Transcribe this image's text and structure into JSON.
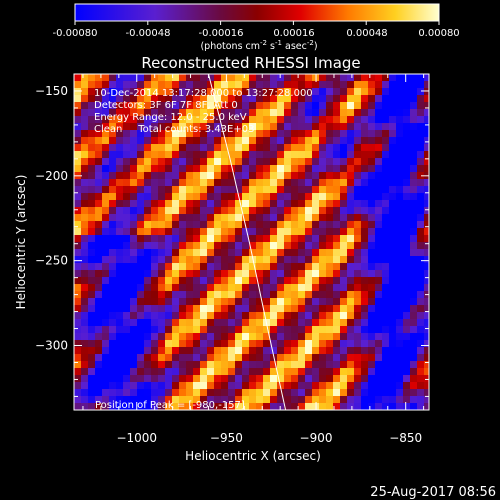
{
  "colorbar": {
    "ticks": [
      "-0.00080",
      "-0.00048",
      "-0.00016",
      "0.00016",
      "0.00048",
      "0.00080"
    ],
    "unit_parts": [
      "(photons cm",
      "-2",
      " s",
      "-1",
      " asec",
      "-2",
      ")"
    ],
    "range": [
      -0.0008,
      0.0008
    ]
  },
  "title": "Reconstructed RHESSI Image",
  "info": [
    "10-Dec-2014 13:17:28.000 to 13:27:28.000",
    "Detectors: 3F 6F 7F 8F, Att 0",
    "Energy Range: 12.0 - 25.0 keV",
    "Clean     Total counts: 3.43E+03"
  ],
  "peak_label": "Position of Peak = [-980,-157]",
  "footer_timestamp": "25-Aug-2017 08:56",
  "chart_data": {
    "type": "heatmap",
    "title": "Reconstructed RHESSI Image",
    "xlabel": "Heliocentric X (arcsec)",
    "ylabel": "Heliocentric Y (arcsec)",
    "xlim": [
      -1035,
      -837
    ],
    "ylim": [
      -338,
      -140
    ],
    "xticks": [
      -1000,
      -950,
      -900,
      -850
    ],
    "xtick_labels": [
      "−1000",
      "−950",
      "−900",
      "−850"
    ],
    "yticks": [
      -300,
      -250,
      -200,
      -150
    ],
    "ytick_labels": [
      "−300",
      "−250",
      "−200",
      "−150"
    ],
    "limb_curve": [
      [
        -960,
        -140
      ],
      [
        -948,
        -190
      ],
      [
        -937,
        -240
      ],
      [
        -927,
        -290
      ],
      [
        -917,
        -338
      ]
    ],
    "peak_position": [
      -980,
      -157
    ],
    "colormap": "hot-blue",
    "value_range": [
      -0.0008,
      0.0008
    ]
  }
}
